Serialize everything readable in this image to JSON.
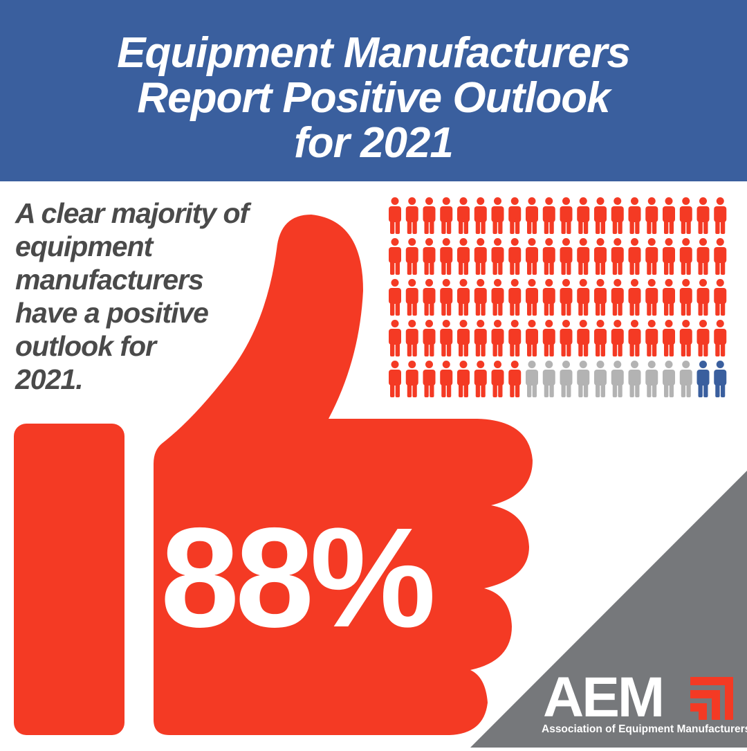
{
  "header": {
    "title": [
      "Equipment Manufacturers",
      "Report Positive Outlook",
      "for 2021"
    ]
  },
  "body_text": [
    "A clear majority of",
    "equipment",
    "manufacturers",
    "have a positive",
    "outlook for",
    "2021."
  ],
  "stat": "88%",
  "pictogram": {
    "columns": 20,
    "groups": [
      {
        "count": 88,
        "color": "#f43a24"
      },
      {
        "count": 10,
        "color": "#b3b3b3"
      },
      {
        "count": 2,
        "color": "#3a5f9e"
      }
    ]
  },
  "logo": {
    "mark": "AEM",
    "name": "Association of Equipment Manufacturers"
  }
}
